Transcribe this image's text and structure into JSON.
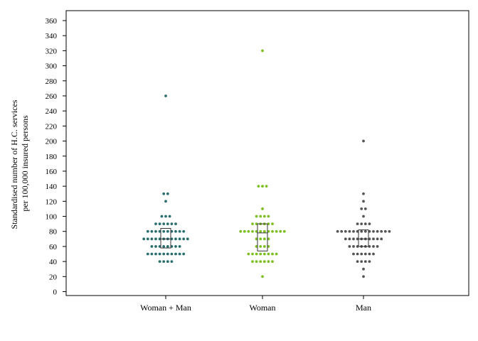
{
  "chart_data": {
    "type": "scatter",
    "subtype": "dot-plot with box (quartiles)",
    "ylabel_line1": "Standardised number of H.C. services",
    "ylabel_line2": "per 100,000 insured persons",
    "ylim": [
      0,
      370
    ],
    "yticks": [
      0,
      20,
      40,
      60,
      80,
      100,
      120,
      140,
      160,
      180,
      200,
      220,
      240,
      260,
      280,
      300,
      320,
      340,
      360
    ],
    "categories": [
      "Woman + Man",
      "Woman",
      "Man"
    ],
    "legend": "none",
    "grid": false,
    "series": [
      {
        "color": "#2a6f6f",
        "box": {
          "q1": 58,
          "median": 70,
          "q3": 84
        },
        "groups": [
          {
            "y": 260,
            "n": 1
          },
          {
            "y": 130,
            "n": 2
          },
          {
            "y": 120,
            "n": 1
          },
          {
            "y": 100,
            "n": 3
          },
          {
            "y": 90,
            "n": 6
          },
          {
            "y": 80,
            "n": 10
          },
          {
            "y": 70,
            "n": 12
          },
          {
            "y": 60,
            "n": 8
          },
          {
            "y": 50,
            "n": 10
          },
          {
            "y": 40,
            "n": 4
          }
        ]
      },
      {
        "color": "#7cbf1f",
        "box": {
          "q1": 54,
          "median": 78,
          "q3": 90
        },
        "groups": [
          {
            "y": 320,
            "n": 1
          },
          {
            "y": 140,
            "n": 3
          },
          {
            "y": 110,
            "n": 1
          },
          {
            "y": 100,
            "n": 4
          },
          {
            "y": 90,
            "n": 6
          },
          {
            "y": 80,
            "n": 12
          },
          {
            "y": 70,
            "n": 4
          },
          {
            "y": 60,
            "n": 4
          },
          {
            "y": 50,
            "n": 8
          },
          {
            "y": 40,
            "n": 6
          },
          {
            "y": 20,
            "n": 1
          }
        ]
      },
      {
        "color": "#555555",
        "box": {
          "q1": 60,
          "median": 70,
          "q3": 82
        },
        "groups": [
          {
            "y": 200,
            "n": 1
          },
          {
            "y": 130,
            "n": 1
          },
          {
            "y": 120,
            "n": 1
          },
          {
            "y": 110,
            "n": 2
          },
          {
            "y": 100,
            "n": 1
          },
          {
            "y": 90,
            "n": 4
          },
          {
            "y": 80,
            "n": 14
          },
          {
            "y": 70,
            "n": 10
          },
          {
            "y": 60,
            "n": 8
          },
          {
            "y": 50,
            "n": 6
          },
          {
            "y": 40,
            "n": 4
          },
          {
            "y": 30,
            "n": 1
          },
          {
            "y": 20,
            "n": 1
          }
        ]
      }
    ]
  }
}
